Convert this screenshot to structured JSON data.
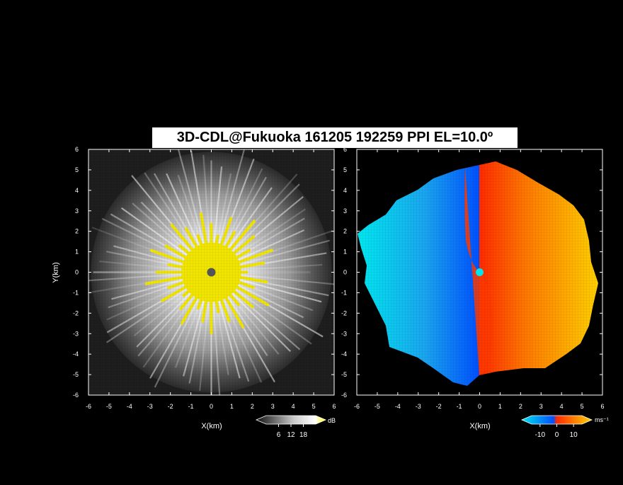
{
  "title": "3D-CDL@Fukuoka 161205 192259 PPI EL=10.0º",
  "chart_data": [
    {
      "type": "heatmap",
      "name": "reflectivity-ppi",
      "xlabel": "X(km)",
      "ylabel": "Y(km)",
      "xlim": [
        -6,
        6
      ],
      "ylim": [
        -6,
        6
      ],
      "xticks": [
        -6,
        -5,
        -4,
        -3,
        -2,
        -1,
        0,
        1,
        2,
        3,
        4,
        5,
        6
      ],
      "yticks": [
        -6,
        -5,
        -4,
        -3,
        -2,
        -1,
        0,
        1,
        2,
        3,
        4,
        5,
        6
      ],
      "colorbar": {
        "unit": "dB",
        "ticks": [
          6,
          12,
          18
        ],
        "colors": [
          "#111111",
          "#ffffff",
          "#ffff00"
        ]
      },
      "background_color": "#000000",
      "near_range_color": "#f2e600",
      "radar_site": [
        0,
        0
      ]
    },
    {
      "type": "heatmap",
      "name": "doppler-velocity-ppi",
      "xlabel": "X(km)",
      "ylabel": "",
      "xlim": [
        -6,
        6
      ],
      "ylim": [
        -6,
        6
      ],
      "xticks": [
        -6,
        -5,
        -4,
        -3,
        -2,
        -1,
        0,
        1,
        2,
        3,
        4,
        5,
        6
      ],
      "yticks": [
        -6,
        -5,
        -4,
        -3,
        -2,
        -1,
        0,
        1,
        2,
        3,
        4,
        5,
        6
      ],
      "colorbar": {
        "unit": "ms⁻¹",
        "ticks": [
          -10,
          0,
          10
        ],
        "colors": [
          "#00e5ee",
          "#0050ff",
          "#ff2a00",
          "#ffd200"
        ]
      },
      "background_color": "#000000",
      "radar_site": [
        0,
        0
      ]
    }
  ]
}
